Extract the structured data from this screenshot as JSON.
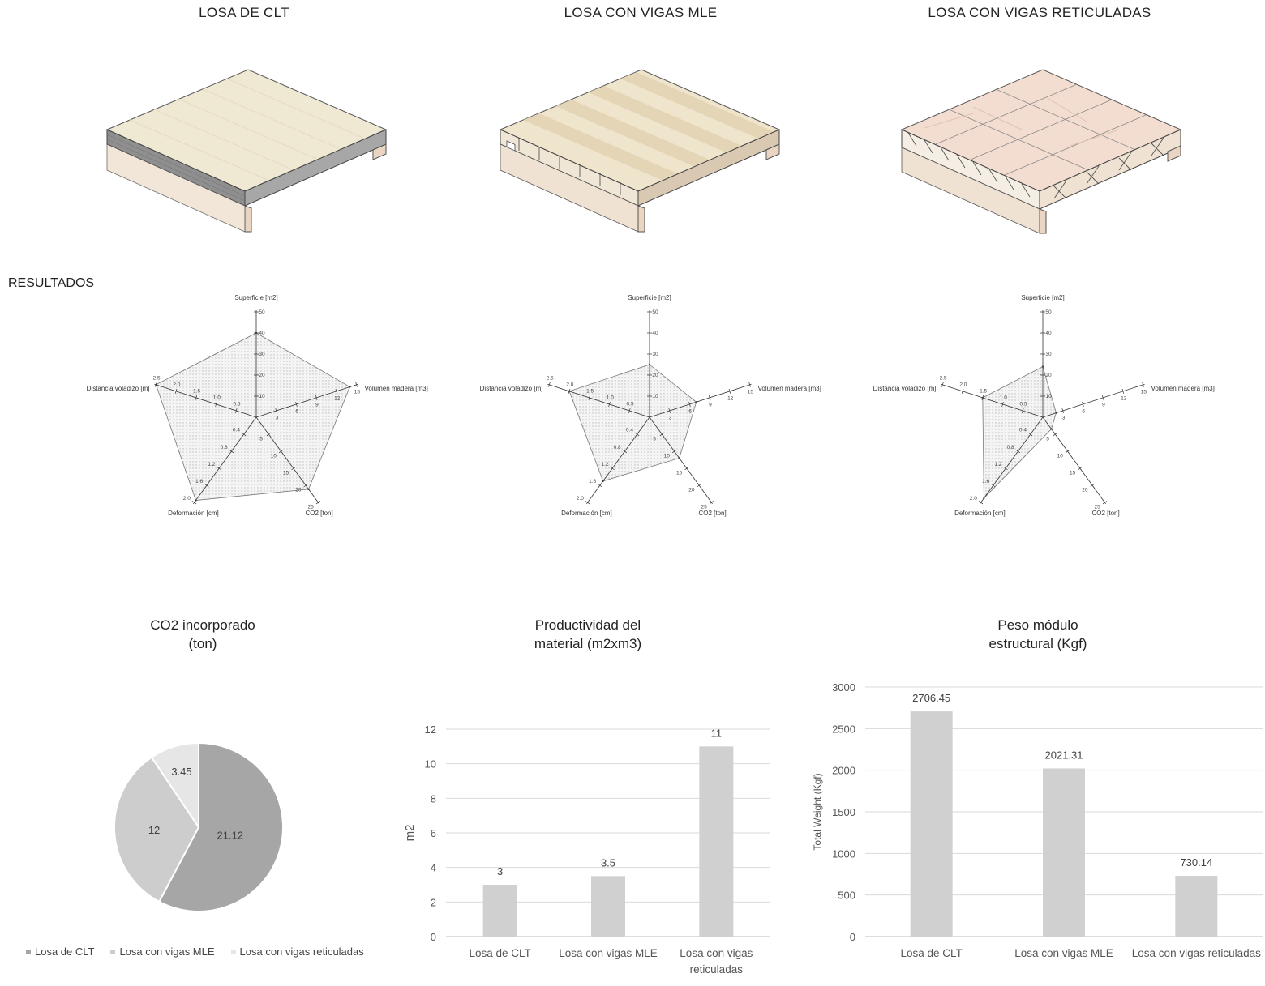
{
  "slabs": [
    {
      "title": "LOSA DE CLT"
    },
    {
      "title": "LOSA CON VIGAS MLE"
    },
    {
      "title": "LOSA CON VIGAS RETICULADAS"
    }
  ],
  "results_label": "RESULTADOS",
  "radar": {
    "axes": [
      {
        "label": "Superficie [m2]",
        "ticks": [
          "10",
          "20",
          "30",
          "40",
          "50"
        ],
        "max": 50
      },
      {
        "label": "Volumen madera [m3]",
        "ticks": [
          "3",
          "6",
          "9",
          "12",
          "15"
        ],
        "max": 15
      },
      {
        "label": "CO2 [ton]",
        "ticks": [
          "5",
          "10",
          "15",
          "20",
          "25"
        ],
        "max": 25
      },
      {
        "label": "Deformación [cm]",
        "ticks": [
          "0.4",
          "0.8",
          "1.2",
          "1.6",
          "2.0"
        ],
        "max": 2.0
      },
      {
        "label": "Distancia voladizo [m]",
        "ticks": [
          "0.5",
          "1.0",
          "1.5",
          "2.0",
          "2.5"
        ],
        "max": 2.5
      }
    ]
  },
  "chart_data": [
    {
      "type": "radar",
      "title": "LOSA DE CLT",
      "axes": [
        "Superficie [m2]",
        "Volumen madera [m3]",
        "CO2 [ton]",
        "Deformación [cm]",
        "Distancia voladizo [m]"
      ],
      "values": [
        40,
        14,
        21.12,
        1.95,
        2.5
      ]
    },
    {
      "type": "radar",
      "title": "LOSA CON VIGAS MLE",
      "axes": [
        "Superficie [m2]",
        "Volumen madera [m3]",
        "CO2 [ton]",
        "Deformación [cm]",
        "Distancia voladizo [m]"
      ],
      "values": [
        25,
        7,
        12,
        1.5,
        2.0
      ]
    },
    {
      "type": "radar",
      "title": "LOSA CON VIGAS RETICULADAS",
      "axes": [
        "Superficie [m2]",
        "Volumen madera [m3]",
        "CO2 [ton]",
        "Deformación [cm]",
        "Distancia voladizo [m]"
      ],
      "values": [
        24,
        2,
        3.45,
        1.9,
        1.5
      ]
    },
    {
      "type": "pie",
      "title": "CO2 incorporado (ton)",
      "categories": [
        "Losa de CLT",
        "Losa con vigas MLE",
        "Losa con vigas reticuladas"
      ],
      "values": [
        21.12,
        12,
        3.45
      ],
      "value_labels": [
        "21.12",
        "12",
        "3.45"
      ],
      "colors": [
        "#a6a6a6",
        "#cdcdcd",
        "#e6e6e6"
      ],
      "legend": "bottom"
    },
    {
      "type": "bar",
      "title": "Productividad del material (m2xm3)",
      "categories": [
        "Losa de CLT",
        "Losa con vigas MLE",
        "Losa con vigas reticuladas"
      ],
      "values": [
        3,
        3.5,
        11
      ],
      "value_labels": [
        "3",
        "3.5",
        "11"
      ],
      "ylabel": "m2",
      "ylim": [
        0,
        12
      ],
      "yticks": [
        "0",
        "2",
        "4",
        "6",
        "8",
        "10",
        "12"
      ],
      "grid": true
    },
    {
      "type": "bar",
      "title": "Peso módulo estructural (Kgf)",
      "categories": [
        "Losa de CLT",
        "Losa con vigas MLE",
        "Losa con vigas reticuladas"
      ],
      "values": [
        2706.45,
        2021.31,
        730.14
      ],
      "value_labels": [
        "2706.45",
        "2021.31",
        "730.14"
      ],
      "ylabel": "Total Weight (Kgf)",
      "ylim": [
        0,
        3000
      ],
      "yticks": [
        "0",
        "500",
        "1000",
        "1500",
        "2000",
        "2500",
        "3000"
      ],
      "grid": true
    }
  ],
  "titles": {
    "pie_line1": "CO2 incorporado",
    "pie_line2": "(ton)",
    "prod_line1": "Productividad del",
    "prod_line2": "material (m2xm3)",
    "peso_line1": "Peso módulo",
    "peso_line2": "estructural (Kgf)"
  },
  "prod_cat_labels": [
    "Losa de CLT",
    "Losa con vigas MLE",
    "Losa con vigas",
    "reticuladas"
  ],
  "colors": {
    "bar": "#d0d0d0",
    "grid": "#d9d9d9",
    "wood_top": "#efe6cf",
    "wood_side": "#e8d6c0",
    "truss_top": "#f1d9cc"
  }
}
